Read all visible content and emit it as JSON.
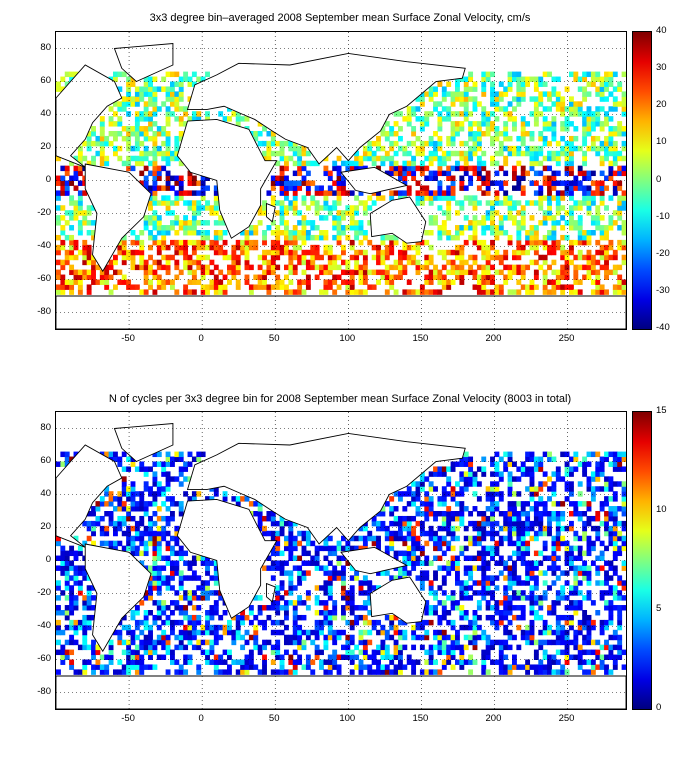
{
  "chart_data": [
    {
      "type": "heatmap",
      "title": "3x3 degree bin–averaged 2008 September mean Surface Zonal Velocity, cm/s",
      "xlim": [
        -100,
        290
      ],
      "ylim": [
        -90,
        90
      ],
      "xticks": [
        -50,
        0,
        50,
        100,
        150,
        200,
        250
      ],
      "yticks": [
        80,
        60,
        40,
        20,
        0,
        -20,
        -40,
        -60,
        -80
      ],
      "grid": true,
      "colorbar": {
        "min": -40,
        "max": 40,
        "ticks": [
          40,
          30,
          20,
          10,
          0,
          -10,
          -20,
          -30,
          -40
        ],
        "colormap": "jet"
      },
      "bin_size_deg": 3
    },
    {
      "type": "heatmap",
      "title": "N of cycles per 3x3 degree bin for 2008 September mean Surface Zonal Velocity (8003 in total)",
      "xlim": [
        -100,
        290
      ],
      "ylim": [
        -90,
        90
      ],
      "xticks": [
        -50,
        0,
        50,
        100,
        150,
        200,
        250
      ],
      "yticks": [
        80,
        60,
        40,
        20,
        0,
        -20,
        -40,
        -60,
        -80
      ],
      "grid": true,
      "colorbar": {
        "min": 0,
        "max": 15,
        "ticks": [
          15,
          10,
          5,
          0
        ],
        "colormap": "jet"
      },
      "bin_size_deg": 3
    }
  ]
}
